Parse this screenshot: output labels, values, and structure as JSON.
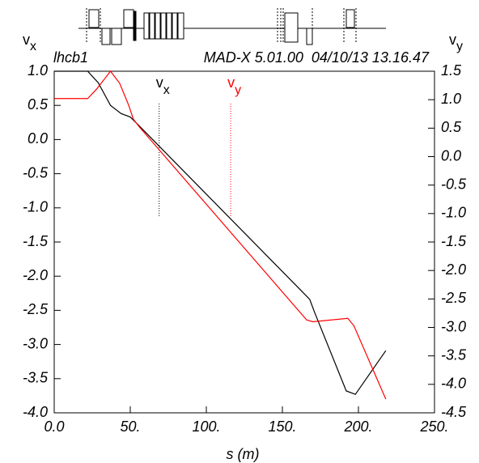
{
  "chart_data": {
    "type": "line",
    "header_left": "lhcb1",
    "header_right": "MAD-X 5.01.00  04/10/13 13.16.47",
    "xlabel": "s (m)",
    "ylabel": {
      "text": "v",
      "sub": "x"
    },
    "y2label": {
      "text": "v",
      "sub": "y"
    },
    "xlim": [
      0,
      250
    ],
    "ylim": [
      -4.0,
      1.0
    ],
    "y2lim": [
      -4.5,
      1.5
    ],
    "xticks": [
      {
        "value": 0,
        "label": "0.0"
      },
      {
        "value": 50,
        "label": "50."
      },
      {
        "value": 100,
        "label": "100."
      },
      {
        "value": 150,
        "label": "150."
      },
      {
        "value": 200,
        "label": "200."
      },
      {
        "value": 250,
        "label": "250."
      }
    ],
    "yticks": [
      {
        "value": 1.0,
        "label": "1.0"
      },
      {
        "value": 0.5,
        "label": "0.5"
      },
      {
        "value": 0,
        "label": "0.0"
      },
      {
        "value": -0.5,
        "label": "-0.5"
      },
      {
        "value": -1.0,
        "label": "-1.0"
      },
      {
        "value": -1.5,
        "label": "-1.5"
      },
      {
        "value": -2.0,
        "label": "-2.0"
      },
      {
        "value": -2.5,
        "label": "-2.5"
      },
      {
        "value": -3.0,
        "label": "-3.0"
      },
      {
        "value": -3.5,
        "label": "-3.5"
      },
      {
        "value": -4.0,
        "label": "-4.0"
      }
    ],
    "y2ticks": [
      {
        "value": 1.5,
        "label": "1.5"
      },
      {
        "value": 1.0,
        "label": "1.0"
      },
      {
        "value": 0.5,
        "label": "0.5"
      },
      {
        "value": 0,
        "label": "0.0"
      },
      {
        "value": -0.5,
        "label": "-0.5"
      },
      {
        "value": -1.0,
        "label": "-1.0"
      },
      {
        "value": -1.5,
        "label": "-1.5"
      },
      {
        "value": -2.0,
        "label": "-2.0"
      },
      {
        "value": -2.5,
        "label": "-2.5"
      },
      {
        "value": -3.0,
        "label": "-3.0"
      },
      {
        "value": -3.5,
        "label": "-3.5"
      },
      {
        "value": -4.0,
        "label": "-4.0"
      },
      {
        "value": -4.5,
        "label": "-4.5"
      }
    ],
    "series": [
      {
        "color": "#000000",
        "axis": "y",
        "x": [
          0,
          22,
          29,
          37,
          44,
          50,
          55,
          168,
          171,
          192,
          198,
          218
        ],
        "values": [
          1.0,
          1.0,
          0.83,
          0.5,
          0.38,
          0.33,
          0.22,
          -2.34,
          -2.52,
          -3.68,
          -3.73,
          -3.09
        ]
      },
      {
        "color": "#ff0000",
        "axis": "y2",
        "x": [
          0,
          22,
          28,
          37,
          43,
          49,
          52,
          56,
          166,
          170,
          193,
          197,
          218
        ],
        "values": [
          1.02,
          1.02,
          1.19,
          1.5,
          1.29,
          0.9,
          0.66,
          0.52,
          -2.87,
          -2.9,
          -2.84,
          -2.97,
          -4.26
        ]
      }
    ],
    "annotations": [
      {
        "text": "v",
        "sub": "x",
        "x": 69,
        "color": "#000000"
      },
      {
        "text": "v",
        "sub": "y",
        "x": 116,
        "color": "#ff0000"
      }
    ]
  }
}
